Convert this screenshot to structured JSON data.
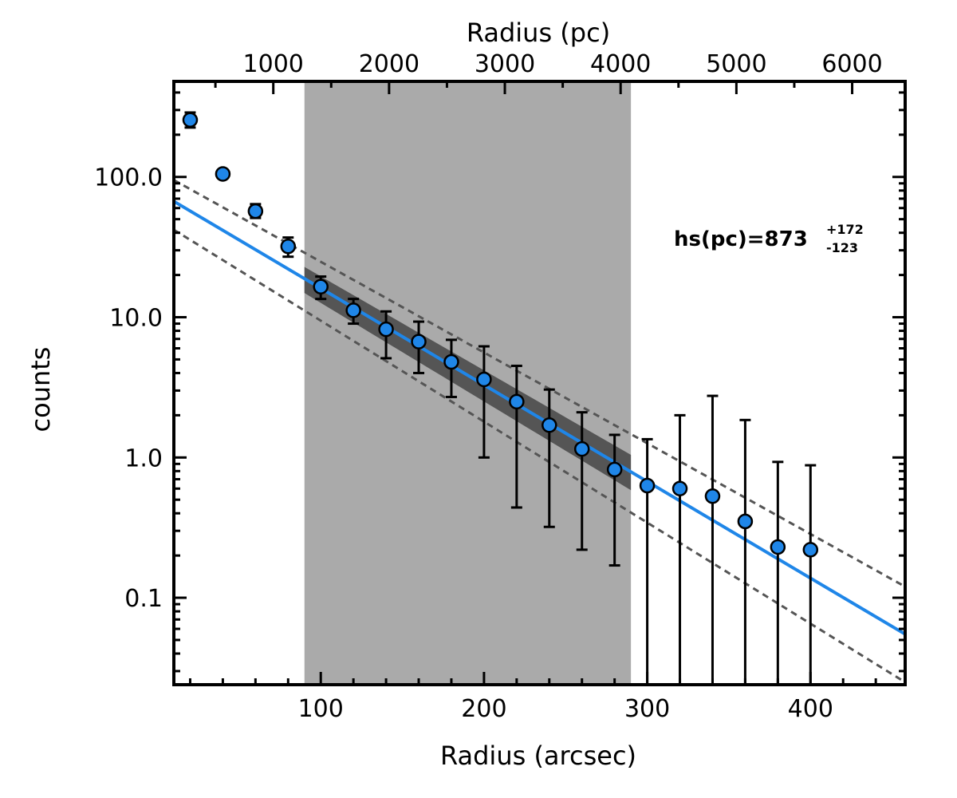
{
  "chart_data": {
    "type": "scatter",
    "title": "",
    "xlabel": "Radius (arcsec)",
    "ylabel": "counts",
    "x2label": "Radius (pc)",
    "xlim": [
      10,
      458
    ],
    "ylim": [
      0.024,
      480
    ],
    "yscale": "log",
    "x_ticks": [
      100,
      200,
      300,
      400
    ],
    "x_tick_labels": [
      "100",
      "200",
      "300",
      "400"
    ],
    "x2_ticks": [
      1000,
      2000,
      3000,
      4000,
      5000,
      6000
    ],
    "x2_tick_labels": [
      "1000",
      "2000",
      "3000",
      "4000",
      "5000",
      "6000"
    ],
    "pc_per_arcsec": 14.1,
    "y_ticks": [
      0.1,
      1,
      10,
      100
    ],
    "y_tick_labels": [
      "0.1",
      "1.0",
      "10.0",
      "100.0"
    ],
    "fit_region": [
      90,
      290
    ],
    "series": [
      {
        "name": "profile",
        "color": "#1f86e8",
        "x": [
          20,
          40,
          60,
          80,
          100,
          120,
          140,
          160,
          180,
          200,
          220,
          240,
          260,
          280,
          300,
          320,
          340,
          360,
          380,
          400
        ],
        "y": [
          255,
          105,
          57,
          32,
          16.5,
          11.2,
          8.2,
          6.7,
          4.8,
          3.6,
          2.5,
          1.7,
          1.15,
          0.82,
          0.63,
          0.6,
          0.53,
          0.35,
          0.23,
          0.22
        ],
        "err_low": [
          225,
          100,
          51,
          27,
          13.5,
          9.0,
          5.1,
          4.0,
          2.7,
          1.0,
          0.44,
          0.32,
          0.22,
          0.17,
          0.01,
          0.01,
          0.01,
          0.01,
          0.01,
          0.01
        ],
        "err_high": [
          288,
          110,
          64,
          37,
          19.5,
          13.5,
          11.0,
          9.3,
          6.9,
          6.2,
          4.5,
          3.05,
          2.1,
          1.45,
          1.35,
          2.0,
          2.75,
          1.85,
          0.93,
          0.88
        ]
      }
    ],
    "fit": {
      "name": "best fit",
      "color": "#1f86e8",
      "x": [
        10,
        458
      ],
      "y": [
        67,
        0.055
      ]
    },
    "fit_bounds": [
      {
        "name": "upper bound",
        "color": "#555555",
        "x": [
          10,
          458
        ],
        "y": [
          95,
          0.12
        ]
      },
      {
        "name": "lower bound",
        "color": "#555555",
        "x": [
          10,
          458
        ],
        "y": [
          42,
          0.025
        ]
      }
    ],
    "annotation": {
      "main": "hs(pc)=873",
      "sup": "+172",
      "sub": "-123"
    }
  }
}
